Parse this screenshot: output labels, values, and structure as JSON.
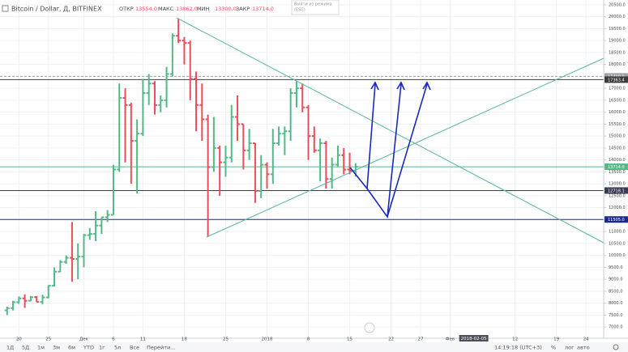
{
  "header": {
    "symbol": "Bitcoin / Dollar, Д, BITFINEX",
    "ohlc": [
      {
        "label": "ОТКР",
        "value": "13554.0"
      },
      {
        "label": "МАКС",
        "value": "13862.0"
      },
      {
        "label": "МИН",
        "value": "13300.0"
      },
      {
        "label": "ЗАКР",
        "value": "13714.0"
      }
    ]
  },
  "popup": [
    "Выйти из режима",
    "(ESC)"
  ],
  "toolbar": {
    "ranges": [
      "1Д",
      "5Д",
      "1м",
      "3м",
      "6м",
      "YTD",
      "1г",
      "5л",
      "Все"
    ],
    "goto": "Перейти...",
    "time": "14:19:18 (UTC+3)",
    "options": [
      "%",
      "лог",
      "авто"
    ]
  },
  "chart_data": {
    "type": "ohlc",
    "up_color": "#53b987",
    "down_color": "#eb4d5c",
    "grid": true,
    "x": [
      1,
      2,
      3,
      4,
      5,
      6,
      7,
      8,
      9,
      10,
      11,
      12,
      13,
      14,
      15,
      16,
      17,
      18,
      19,
      20,
      21,
      22,
      23,
      24,
      25,
      26,
      27,
      28,
      29,
      30,
      31,
      32,
      33,
      34,
      35,
      36,
      37,
      38,
      39,
      40,
      41,
      42,
      43,
      44,
      45,
      46,
      47,
      48,
      49,
      50,
      51,
      52,
      53,
      54,
      55,
      56,
      57,
      58,
      59,
      60
    ],
    "open": [
      7699,
      7790,
      8040,
      8200,
      8100,
      8250,
      8050,
      8240,
      8730,
      9320,
      9730,
      9900,
      9850,
      9950,
      10850,
      10900,
      11250,
      11600,
      11700,
      13600,
      16600,
      16300,
      14800,
      15100,
      16800,
      17200,
      16300,
      16500,
      17600,
      19200,
      19000,
      18900,
      17400,
      16300,
      15700,
      13700,
      14500,
      13900,
      14100,
      15800,
      15500,
      14400,
      14700,
      12700,
      13800,
      13400,
      14700,
      15100,
      15200,
      16800,
      17000,
      16200,
      15000,
      14400,
      14700,
      13200,
      13800,
      14200,
      13600,
      13554
    ],
    "high": [
      7850,
      8100,
      8280,
      8370,
      8300,
      8300,
      8350,
      8750,
      9500,
      9800,
      10000,
      11400,
      10500,
      10900,
      11150,
      11850,
      11600,
      11900,
      13800,
      17200,
      17000,
      16400,
      15700,
      17400,
      17600,
      17300,
      16700,
      17900,
      19300,
      19900,
      19150,
      19000,
      17700,
      17200,
      15900,
      15800,
      14600,
      14600,
      16300,
      16700,
      15500,
      15300,
      14700,
      14200,
      13900,
      15300,
      15400,
      15400,
      17000,
      17300,
      17200,
      16300,
      15400,
      14900,
      14800,
      14100,
      14600,
      14500,
      14300,
      13862
    ],
    "low": [
      7500,
      7694,
      7970,
      7800,
      8090,
      8050,
      7950,
      8200,
      8700,
      9300,
      9650,
      8900,
      9000,
      9500,
      10650,
      10600,
      10900,
      11400,
      11700,
      13500,
      13900,
      13000,
      12600,
      15000,
      16300,
      15900,
      16000,
      16200,
      17500,
      18900,
      18000,
      16500,
      15200,
      14800,
      10800,
      13500,
      12500,
      13300,
      13900,
      14800,
      13600,
      14000,
      12200,
      12400,
      12800,
      13000,
      14600,
      14200,
      14800,
      16200,
      16000,
      14000,
      14300,
      13100,
      12800,
      12800,
      13700,
      13400,
      13400,
      13300
    ],
    "close": [
      7790,
      8040,
      8200,
      8100,
      8250,
      8050,
      8240,
      8730,
      9320,
      9730,
      9900,
      9850,
      9950,
      10850,
      10900,
      11250,
      11600,
      11700,
      13600,
      16600,
      16300,
      14800,
      15100,
      16800,
      17200,
      16300,
      16500,
      17600,
      19200,
      19000,
      18900,
      17400,
      16300,
      15700,
      13700,
      14500,
      13900,
      14100,
      15800,
      15500,
      14400,
      14700,
      12700,
      13800,
      13400,
      14700,
      15100,
      15200,
      16800,
      17000,
      16200,
      15000,
      14400,
      14700,
      13200,
      13800,
      14200,
      13600,
      13554,
      13714
    ],
    "xlim": [
      -0.2,
      102
    ],
    "xticks": [
      {
        "value": 3,
        "label": "20"
      },
      {
        "value": 8,
        "label": "25"
      },
      {
        "value": 14,
        "label": "Дек"
      },
      {
        "value": 19,
        "label": "6"
      },
      {
        "value": 24,
        "label": "11"
      },
      {
        "value": 31,
        "label": "18"
      },
      {
        "value": 38,
        "label": "25"
      },
      {
        "value": 45,
        "label": "2018"
      },
      {
        "value": 52,
        "label": "8"
      },
      {
        "value": 59,
        "label": "15"
      },
      {
        "value": 66,
        "label": "22"
      },
      {
        "value": 71,
        "label": "27"
      },
      {
        "value": 76,
        "label": "Фев"
      },
      {
        "value": 87,
        "label": "12"
      },
      {
        "value": 94,
        "label": "19"
      },
      {
        "value": 99,
        "label": "24"
      }
    ],
    "crosshair_x": {
      "value": 80,
      "label": "2018-02-05"
    },
    "ylim": [
      6530,
      20700
    ],
    "yticks": [
      {
        "value": 7000,
        "label": "7000.0"
      },
      {
        "value": 7500,
        "label": "7500.0"
      },
      {
        "value": 8000,
        "label": "8000.0"
      },
      {
        "value": 8500,
        "label": "8500.0"
      },
      {
        "value": 9000,
        "label": "9000.0"
      },
      {
        "value": 9500,
        "label": "9500.0"
      },
      {
        "value": 10000,
        "label": "10000.0"
      },
      {
        "value": 10500,
        "label": "10500.0"
      },
      {
        "value": 11000,
        "label": "11000.0"
      },
      {
        "value": 11500,
        "label": "11500.0"
      },
      {
        "value": 12000,
        "label": "12000.0"
      },
      {
        "value": 12500,
        "label": "12500.0"
      },
      {
        "value": 13000,
        "label": "13000.0"
      },
      {
        "value": 13500,
        "label": "13500.0"
      },
      {
        "value": 14000,
        "label": "14000.0"
      },
      {
        "value": 14500,
        "label": "14500.0"
      },
      {
        "value": 15000,
        "label": "15000.0"
      },
      {
        "value": 15500,
        "label": "15500.0"
      },
      {
        "value": 16000,
        "label": "16000.0"
      },
      {
        "value": 16500,
        "label": "16500.0"
      },
      {
        "value": 17000,
        "label": "17000.0"
      },
      {
        "value": 17500,
        "label": "17500.0"
      },
      {
        "value": 18000,
        "label": "18000.0"
      },
      {
        "value": 18500,
        "label": "18500.0"
      },
      {
        "value": 19000,
        "label": "19000.0"
      },
      {
        "value": 19500,
        "label": "19500.0"
      },
      {
        "value": 20000,
        "label": "20000.0"
      },
      {
        "value": 20500,
        "label": "20500.0"
      }
    ],
    "price_lines": [
      {
        "value": 17499.9,
        "label": "17499.9",
        "color": "#9aa0a6",
        "dashed": true
      },
      {
        "value": 17363.4,
        "label": "17363.4",
        "color": "#3c3c3c",
        "dashed": false
      },
      {
        "value": 13714.0,
        "label": "13714.0",
        "color": "#53b987",
        "dashed": false
      },
      {
        "value": 12718.1,
        "label": "12718.1",
        "color": "#3a3a55",
        "dashed": false
      },
      {
        "value": 11505.0,
        "label": "11505.0",
        "color": "#1a2a8c",
        "dashed": false
      }
    ]
  }
}
